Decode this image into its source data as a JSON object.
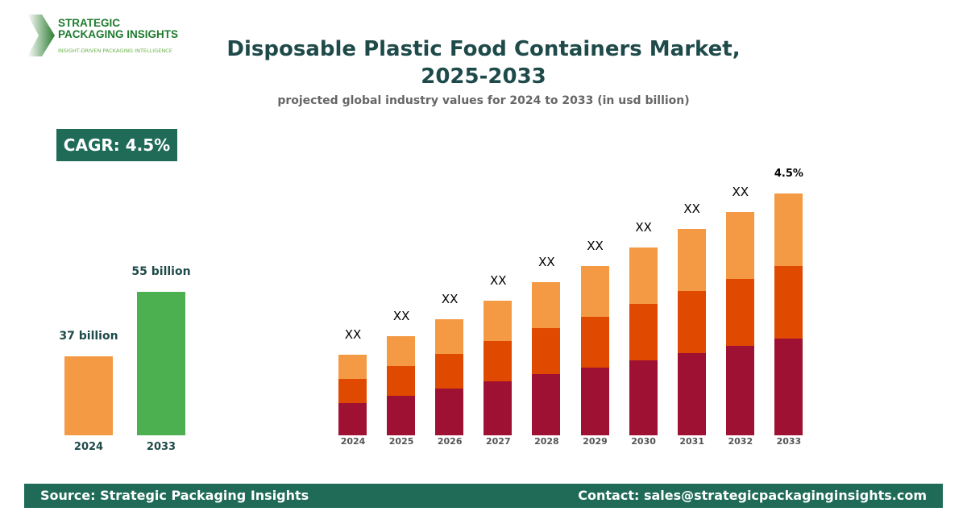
{
  "logo": {
    "line1": "STRATEGIC",
    "line2": "PACKAGING INSIGHTS",
    "tagline": "INSIGHT-DRIVEN PACKAGING INTELLIGENCE"
  },
  "header": {
    "title_line1": "Disposable Plastic Food Containers Market,",
    "title_line2": "2025-2033",
    "subtitle": "projected global industry values for 2024 to 2033 (in usd billion)"
  },
  "cagr": "CAGR: 4.5%",
  "chart_data": [
    {
      "type": "bar",
      "categories": [
        "2024",
        "2033"
      ],
      "values": [
        37,
        55
      ],
      "data_labels": [
        "37 billion",
        "55 billion"
      ],
      "colors": [
        "#F49A45",
        "#4CB050"
      ],
      "ylim": [
        15,
        60
      ]
    },
    {
      "type": "bar",
      "stacked": true,
      "categories": [
        "2024",
        "2025",
        "2026",
        "2027",
        "2028",
        "2029",
        "2030",
        "2031",
        "2032",
        "2033"
      ],
      "series": [
        {
          "values": [
            4.0,
            4.9,
            5.8,
            6.7,
            7.6,
            8.4,
            9.3,
            10.2,
            11.1,
            12.0
          ],
          "color": "#9E1133"
        },
        {
          "values": [
            3.0,
            3.7,
            4.3,
            5.0,
            5.7,
            6.3,
            7.0,
            7.7,
            8.3,
            9.0
          ],
          "color": "#E04A00"
        },
        {
          "values": [
            3.0,
            3.7,
            4.3,
            5.0,
            5.7,
            6.3,
            7.0,
            7.7,
            8.3,
            9.0
          ],
          "color": "#F49A45"
        }
      ],
      "data_labels": [
        "XX",
        "XX",
        "XX",
        "XX",
        "XX",
        "XX",
        "XX",
        "XX",
        "XX",
        "4.5%"
      ],
      "ylim": [
        0,
        30
      ]
    }
  ],
  "footer": {
    "source": "Source: Strategic Packaging Insights",
    "contact": "Contact: sales@strategicpackaginginsights.com"
  }
}
